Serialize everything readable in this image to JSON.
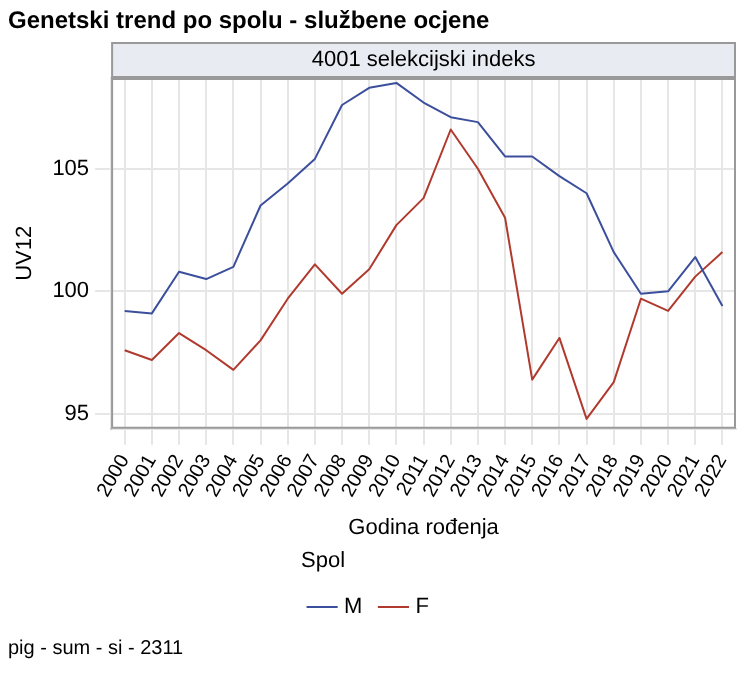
{
  "chart_data": {
    "type": "line",
    "title": "Genetski trend po spolu - službene ocjene",
    "subtitle": "4001 selekcijski indeks",
    "xlabel": "Godina rođenja",
    "ylabel": "UV12",
    "legend_title": "Spol",
    "legend": "bottom",
    "grid": true,
    "marker": "none",
    "line_style": "solid",
    "annotations": [
      "pig - sum - si - 2311"
    ],
    "categories": [
      "2000",
      "2001",
      "2002",
      "2003",
      "2004",
      "2005",
      "2006",
      "2007",
      "2008",
      "2009",
      "2010",
      "2011",
      "2012",
      "2013",
      "2014",
      "2015",
      "2016",
      "2017",
      "2018",
      "2019",
      "2020",
      "2021",
      "2022"
    ],
    "ylim": [
      94.4,
      108.7
    ],
    "yticks": [
      95,
      100,
      105
    ],
    "series": [
      {
        "name": "M",
        "color": "#3c4f9c",
        "values": [
          99.2,
          99.1,
          100.8,
          100.5,
          101.0,
          103.5,
          104.4,
          105.4,
          107.6,
          108.3,
          108.5,
          107.7,
          107.1,
          106.9,
          105.5,
          105.5,
          104.7,
          104.0,
          101.6,
          99.9,
          100.0,
          101.4,
          99.4
        ]
      },
      {
        "name": "F",
        "color": "#b03a2e",
        "values": [
          97.6,
          97.2,
          98.3,
          97.6,
          96.8,
          98.0,
          99.7,
          101.1,
          99.9,
          100.9,
          102.7,
          103.8,
          106.6,
          105.0,
          103.0,
          96.4,
          98.1,
          94.8,
          96.3,
          99.7,
          99.2,
          100.6,
          101.6
        ]
      }
    ]
  }
}
